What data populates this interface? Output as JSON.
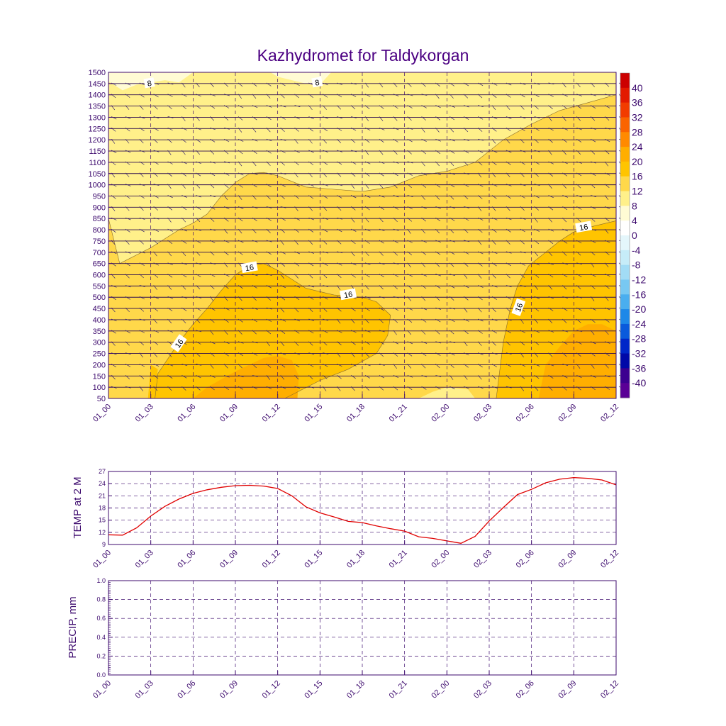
{
  "title": "Kazhydromet for Taldykorgan",
  "colors": {
    "axis": "#3d0a6e",
    "title": "#4b0082",
    "temp_line": "#e00000",
    "contour_line": "#8a6a2a",
    "grid": "#3d0a6e",
    "level_4_8": "#fffbd4",
    "level_8_12": "#fff08a",
    "level_12_16": "#ffd84a",
    "level_16_20": "#ffc400",
    "level_20_24": "#ffae00"
  },
  "chart_data": [
    {
      "id": "cross_section",
      "type": "heatmap",
      "title": "Kazhydromet for Taldykorgan",
      "x_ticks": [
        "01_00",
        "01_03",
        "01_06",
        "01_09",
        "01_12",
        "01_15",
        "01_18",
        "01_21",
        "02_00",
        "02_03",
        "02_06",
        "02_09",
        "02_12"
      ],
      "y_ticks": [
        1500,
        1450,
        1400,
        1350,
        1300,
        1250,
        1200,
        1150,
        1100,
        1050,
        1000,
        950,
        900,
        850,
        800,
        750,
        700,
        650,
        600,
        550,
        500,
        450,
        400,
        350,
        300,
        250,
        200,
        150,
        100,
        50
      ],
      "ylim": [
        50,
        1500
      ],
      "contour_labels": [
        {
          "text": "8",
          "x": 2.9,
          "y": 1452
        },
        {
          "text": "8",
          "x": 14.8,
          "y": 1455
        },
        {
          "text": "16",
          "x": 10.0,
          "y": 632
        },
        {
          "text": "16",
          "x": 17.0,
          "y": 512
        },
        {
          "text": "16",
          "x": 5.0,
          "y": 295
        },
        {
          "text": "16",
          "x": 29.1,
          "y": 455
        },
        {
          "text": "16",
          "x": 33.7,
          "y": 812
        }
      ],
      "colorbar": {
        "levels": [
          "40",
          "36",
          "32",
          "28",
          "24",
          "20",
          "16",
          "12",
          "8",
          "4",
          "0",
          "-4",
          "-8",
          "-12",
          "-16",
          "-20",
          "-24",
          "-28",
          "-32",
          "-36",
          "-40"
        ],
        "colors": [
          "#cc0000",
          "#e31a00",
          "#f23c00",
          "#fa6400",
          "#ff8a00",
          "#ffae00",
          "#ffc400",
          "#ffd84a",
          "#fff08a",
          "#fffbd4",
          "#ffffff",
          "#e4f6fb",
          "#c6ecf8",
          "#a2dcf5",
          "#78c8f2",
          "#4aaeef",
          "#1e88e8",
          "#0a5adc",
          "#0026c8",
          "#0008a8",
          "#3c0090",
          "#5a0096"
        ]
      }
    },
    {
      "id": "temp2m",
      "type": "line",
      "ylabel": "TEMP at 2 M",
      "x_ticks": [
        "01_00",
        "01_03",
        "01_06",
        "01_09",
        "01_12",
        "01_15",
        "01_18",
        "01_21",
        "02_00",
        "02_03",
        "02_06",
        "02_09",
        "02_12"
      ],
      "y_ticks": [
        "9",
        "12",
        "15",
        "18",
        "21",
        "24",
        "27"
      ],
      "ylim": [
        9,
        27
      ],
      "series": [
        {
          "name": "TEMP at 2 M",
          "x": [
            0,
            1,
            2,
            3,
            4,
            5,
            6,
            7,
            8,
            9,
            10,
            11,
            12,
            13,
            14,
            15,
            16,
            17,
            18,
            19,
            20,
            21,
            22,
            23,
            24,
            25,
            26,
            27,
            28,
            29,
            30,
            31,
            32,
            33,
            34,
            35,
            36
          ],
          "values": [
            11.4,
            11.3,
            13.1,
            16.0,
            18.4,
            20.2,
            21.6,
            22.5,
            23.1,
            23.5,
            23.6,
            23.4,
            22.8,
            21.0,
            18.3,
            16.8,
            15.8,
            14.7,
            14.4,
            13.6,
            12.9,
            12.3,
            10.9,
            10.5,
            9.9,
            9.3,
            11.0,
            14.8,
            18.1,
            21.3,
            22.6,
            24.2,
            25.1,
            25.5,
            25.3,
            24.9,
            23.7
          ]
        }
      ]
    },
    {
      "id": "precip",
      "type": "bar",
      "ylabel": "PRECIP, mm",
      "x_ticks": [
        "01_00",
        "01_03",
        "01_06",
        "01_09",
        "01_12",
        "01_15",
        "01_18",
        "01_21",
        "02_00",
        "02_03",
        "02_06",
        "02_09",
        "02_12"
      ],
      "y_ticks": [
        "0.0",
        "0.2",
        "0.4",
        "0.6",
        "0.8",
        "1.0"
      ],
      "ylim": [
        0,
        1
      ],
      "values": [
        0,
        0,
        0,
        0,
        0,
        0,
        0,
        0,
        0,
        0,
        0,
        0,
        0,
        0,
        0,
        0,
        0,
        0,
        0,
        0,
        0,
        0,
        0,
        0,
        0,
        0,
        0,
        0,
        0,
        0,
        0,
        0,
        0,
        0,
        0,
        0,
        0
      ]
    }
  ]
}
